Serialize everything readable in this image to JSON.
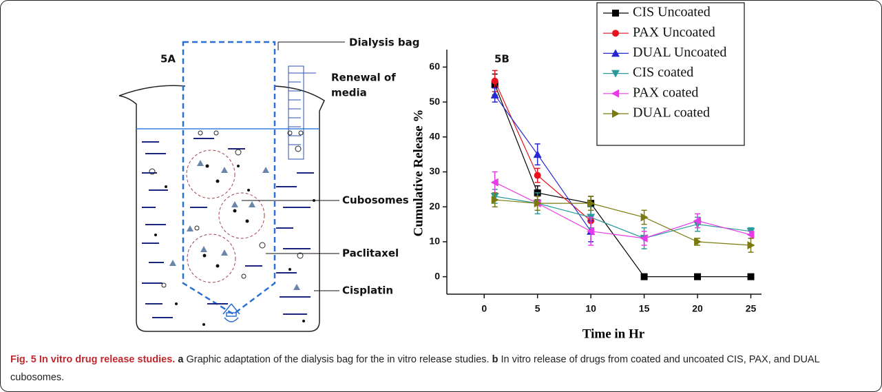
{
  "diagram": {
    "panel_label": "5A",
    "labels": [
      "Dialysis bag",
      "Renewal of",
      "media",
      "Cubosomes",
      "Paclitaxel",
      "Cisplatin"
    ]
  },
  "chart_data": {
    "type": "line",
    "panel_label": "5B",
    "x_label": "Time in Hr",
    "y_label": "Cumulative Release %",
    "x": [
      1,
      5,
      10,
      15,
      20,
      25
    ],
    "series": [
      {
        "name": "CIS Uncoated",
        "color": "#000000",
        "marker": "square",
        "values": [
          55,
          24,
          21,
          0,
          0,
          0
        ],
        "errors": [
          3,
          2,
          2,
          0,
          0,
          0
        ]
      },
      {
        "name": "PAX Uncoated",
        "color": "#e8131e",
        "marker": "circle",
        "values": [
          56,
          29,
          16,
          null,
          null,
          null
        ],
        "errors": [
          3,
          2,
          3,
          null,
          null,
          null
        ]
      },
      {
        "name": "DUAL Uncoated",
        "color": "#2626d4",
        "marker": "triangle-up",
        "values": [
          52,
          35,
          13,
          null,
          null,
          null
        ],
        "errors": [
          2,
          3,
          3,
          null,
          null,
          null
        ]
      },
      {
        "name": "CIS coated",
        "color": "#2a9a9a",
        "marker": "triangle-down",
        "values": [
          23,
          21,
          17,
          11,
          15,
          13
        ],
        "errors": [
          2,
          3,
          3,
          3,
          2,
          1
        ]
      },
      {
        "name": "PAX coated",
        "color": "#e83be8",
        "marker": "triangle-left",
        "values": [
          27,
          21,
          13,
          11,
          16,
          12
        ],
        "errors": [
          3,
          2,
          4,
          2,
          2,
          1
        ]
      },
      {
        "name": "DUAL coated",
        "color": "#7a7a10",
        "marker": "triangle-right",
        "values": [
          22,
          21,
          21,
          17,
          10,
          9
        ],
        "errors": [
          2,
          2,
          2,
          2,
          1,
          2
        ]
      }
    ],
    "xlim": [
      -3.5,
      26
    ],
    "ylim": [
      -5,
      65
    ],
    "xticks": [
      0,
      5,
      10,
      15,
      20,
      25
    ],
    "yticks": [
      0,
      10,
      20,
      30,
      40,
      50,
      60
    ],
    "grid": false,
    "legend": "top-right"
  },
  "caption": {
    "title": "Fig. 5 In vitro drug release studies.",
    "parts": [
      {
        "label": "a",
        "text": "Graphic adaptation of the dialysis bag for the in vitro release studies."
      },
      {
        "label": "b",
        "text": "In vitro release of drugs from coated and uncoated CIS, PAX, and DUAL cubosomes."
      }
    ]
  }
}
